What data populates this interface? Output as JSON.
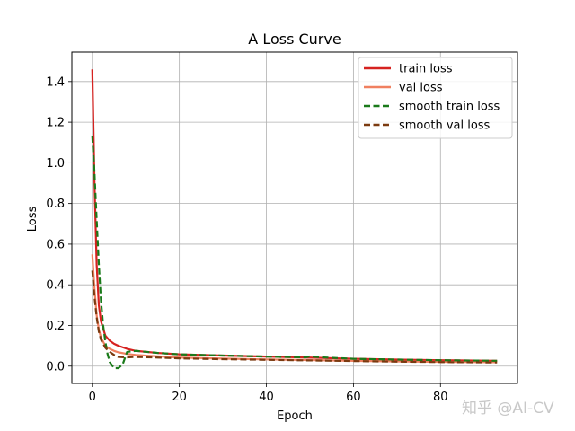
{
  "chart_data": {
    "type": "line",
    "title": "A Loss Curve",
    "xlabel": "Epoch",
    "ylabel": "Loss",
    "xlim": [
      -4.7,
      97.7
    ],
    "ylim": [
      -0.085,
      1.545
    ],
    "xticks": [
      0,
      20,
      40,
      60,
      80
    ],
    "yticks": [
      0.0,
      0.2,
      0.4,
      0.6,
      0.8,
      1.0,
      1.2,
      1.4
    ],
    "grid": true,
    "legend_position": "top-right",
    "series": [
      {
        "name": "train loss",
        "color": "#d62220",
        "dash": "solid",
        "x": [
          0,
          0.5,
          1,
          1.5,
          2,
          3,
          4,
          5,
          6,
          8,
          10,
          15,
          20,
          30,
          40,
          50,
          60,
          70,
          80,
          93
        ],
        "y": [
          1.46,
          0.9,
          0.5,
          0.3,
          0.22,
          0.15,
          0.125,
          0.11,
          0.1,
          0.085,
          0.075,
          0.065,
          0.058,
          0.052,
          0.047,
          0.042,
          0.036,
          0.032,
          0.029,
          0.026
        ]
      },
      {
        "name": "val loss",
        "color": "#f08060",
        "dash": "solid",
        "x": [
          0,
          0.5,
          1,
          1.5,
          2,
          3,
          4,
          5,
          6,
          8,
          10,
          15,
          20,
          30,
          40,
          50,
          60,
          70,
          80,
          93
        ],
        "y": [
          0.55,
          0.38,
          0.25,
          0.18,
          0.14,
          0.1,
          0.085,
          0.075,
          0.068,
          0.06,
          0.055,
          0.048,
          0.042,
          0.037,
          0.033,
          0.03,
          0.026,
          0.023,
          0.021,
          0.019
        ]
      },
      {
        "name": "smooth train loss",
        "color": "#1a7a1a",
        "dash": "dashed",
        "x": [
          0,
          0.5,
          1,
          1.5,
          2,
          2.5,
          3,
          3.5,
          4,
          5,
          6,
          7,
          8,
          10,
          15,
          20,
          30,
          40,
          49,
          50,
          52,
          60,
          70,
          80,
          93
        ],
        "y": [
          1.13,
          0.95,
          0.72,
          0.5,
          0.32,
          0.2,
          0.12,
          0.06,
          0.02,
          -0.01,
          -0.01,
          0.01,
          0.07,
          0.075,
          0.065,
          0.058,
          0.052,
          0.047,
          0.043,
          0.048,
          0.044,
          0.036,
          0.032,
          0.029,
          0.026
        ]
      },
      {
        "name": "smooth val loss",
        "color": "#7b3a10",
        "dash": "dashed",
        "x": [
          0,
          0.5,
          1,
          1.5,
          2,
          3,
          4,
          5,
          6,
          8,
          10,
          15,
          20,
          30,
          40,
          50,
          60,
          70,
          80,
          93
        ],
        "y": [
          0.47,
          0.34,
          0.24,
          0.17,
          0.13,
          0.09,
          0.07,
          0.055,
          0.045,
          0.043,
          0.045,
          0.042,
          0.038,
          0.034,
          0.031,
          0.028,
          0.025,
          0.022,
          0.02,
          0.018
        ]
      }
    ]
  },
  "watermark": "知乎 @AI-CV"
}
